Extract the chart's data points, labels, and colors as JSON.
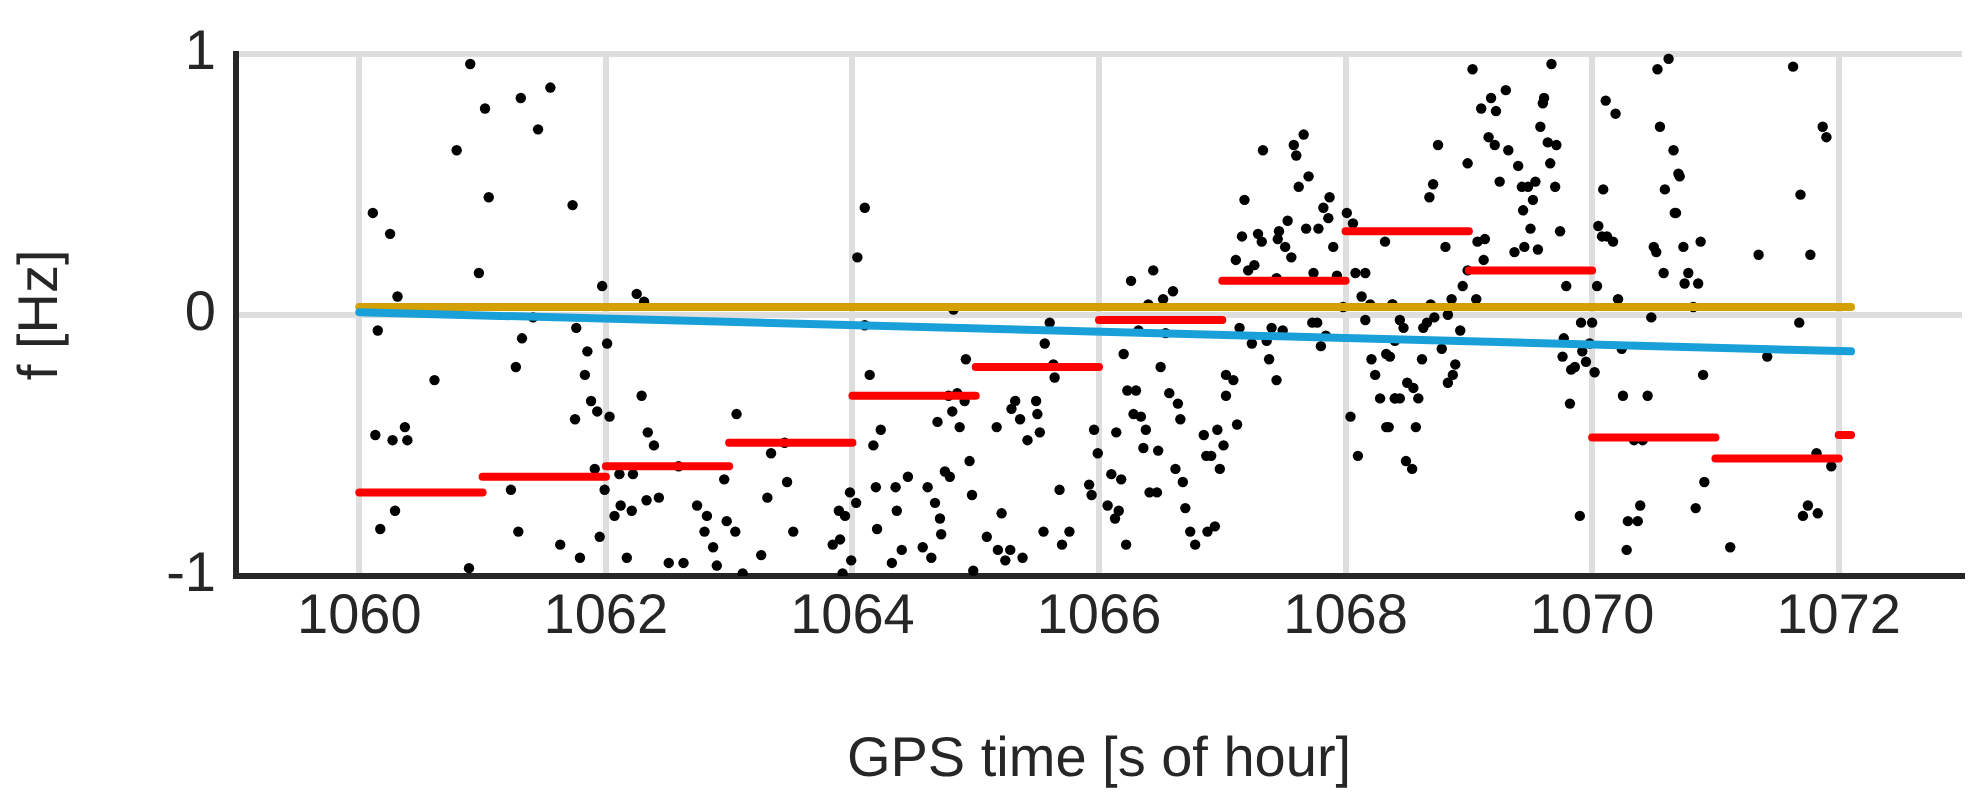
{
  "chart_data": {
    "type": "scatter",
    "xlabel": "GPS time [s of hour]",
    "ylabel": "f [Hz]",
    "xlim": [
      1059,
      1073
    ],
    "xticks": [
      1060,
      1062,
      1064,
      1066,
      1068,
      1070,
      1072
    ],
    "ylim": [
      -1,
      1
    ],
    "yticks": [
      -1,
      0,
      1
    ],
    "grid": true,
    "legend": false,
    "series": [
      {
        "marker": "circle",
        "color": "#000000",
        "x": [
          1060.9,
          1061.02,
          1061.31,
          1060.79,
          1061.05,
          1060.11,
          1060.25,
          1060.97,
          1060.31,
          1060.15,
          1061.32,
          1061.27,
          1060.61,
          1060.13,
          1060.27,
          1060.37,
          1060.39,
          1061.23,
          1060.29,
          1060.17,
          1061.29,
          1060.89,
          1061.55,
          1061.45,
          1061.73,
          1061.97,
          1062.25,
          1062.31,
          1061.41,
          1061.76,
          1062.01,
          1061.85,
          1061.83,
          1062.29,
          1061.88,
          1061.75,
          1061.93,
          1062.03,
          1062.34,
          1063.06,
          1062.39,
          1063.34,
          1063.45,
          1061.91,
          1062.11,
          1062.22,
          1062.59,
          1062.96,
          1061.99,
          1062.12,
          1062.33,
          1062.43,
          1062.21,
          1062.07,
          1062.74,
          1062.82,
          1063.31,
          1063.47,
          1062.98,
          1062.8,
          1063.05,
          1063.52,
          1061.95,
          1061.63,
          1061.79,
          1062.17,
          1062.51,
          1062.63,
          1062.87,
          1062.9,
          1063.26,
          1063.11,
          1064.1,
          1064.04,
          1064.1,
          1064.82,
          1064.14,
          1065.6,
          1065.56,
          1065.63,
          1065.64,
          1064.92,
          1064.78,
          1064.85,
          1064.91,
          1064.81,
          1064.69,
          1064.87,
          1065.32,
          1065.29,
          1065.49,
          1065.36,
          1065.5,
          1065.52,
          1065.17,
          1065.42,
          1064.23,
          1064.17,
          1065.96,
          1065.99,
          1064.95,
          1064.19,
          1064.35,
          1064.45,
          1064.61,
          1064.75,
          1064.79,
          1064.97,
          1063.98,
          1064.03,
          1063.89,
          1063.94,
          1064.36,
          1064.67,
          1064.71,
          1064.2,
          1064.72,
          1063.9,
          1063.84,
          1065.68,
          1065.92,
          1065.94,
          1065.21,
          1065.55,
          1065.76,
          1065.09,
          1065.7,
          1064.4,
          1064.57,
          1064.64,
          1065.18,
          1065.28,
          1065.24,
          1065.38,
          1064.32,
          1063.99,
          1064.98,
          1063.92,
          1066.26,
          1066.44,
          1066.6,
          1066.52,
          1066.4,
          1066.32,
          1066.54,
          1066.2,
          1066.5,
          1066.23,
          1066.3,
          1066.57,
          1066.64,
          1067.03,
          1067.09,
          1067.03,
          1066.28,
          1066.34,
          1066.14,
          1066.38,
          1066.66,
          1066.85,
          1066.96,
          1067.12,
          1066.36,
          1066.48,
          1066.87,
          1066.91,
          1067.01,
          1066.98,
          1066.62,
          1066.1,
          1066.18,
          1066.68,
          1066.41,
          1066.47,
          1066.07,
          1066.16,
          1066.13,
          1066.7,
          1066.74,
          1066.88,
          1066.94,
          1066.22,
          1066.78,
          1067.33,
          1067.58,
          1067.66,
          1067.6,
          1067.7,
          1067.62,
          1067.18,
          1067.87,
          1067.82,
          1067.86,
          1067.53,
          1067.46,
          1067.29,
          1067.32,
          1067.16,
          1067.45,
          1067.68,
          1067.78,
          1067.51,
          1067.56,
          1067.9,
          1067.11,
          1067.26,
          1067.21,
          1067.74,
          1067.93,
          1067.44,
          1067.14,
          1067.4,
          1067.49,
          1067.73,
          1067.77,
          1067.84,
          1067.24,
          1067.36,
          1067.8,
          1067.38,
          1067.44,
          1068.01,
          1068.06,
          1068.08,
          1068.16,
          1068.32,
          1067.98,
          1068.13,
          1068.2,
          1068.38,
          1068.16,
          1068.21,
          1068.24,
          1068.33,
          1068.28,
          1068.4,
          1068.04,
          1068.33,
          1068.1,
          1069.03,
          1069.67,
          1069.1,
          1069.18,
          1069.22,
          1069.3,
          1069.6,
          1069.61,
          1069.16,
          1069.21,
          1069.32,
          1069.58,
          1069.64,
          1069.71,
          1068.75,
          1068.99,
          1069.4,
          1069.66,
          1068.71,
          1068.68,
          1069.25,
          1069.43,
          1069.48,
          1069.54,
          1069.7,
          1069.52,
          1069.44,
          1069.5,
          1069.74,
          1069.07,
          1069.13,
          1069.37,
          1069.45,
          1069.56,
          1068.81,
          1069.12,
          1068.99,
          1068.95,
          1069.06,
          1068.86,
          1069.79,
          1068.38,
          1068.69,
          1068.44,
          1068.47,
          1068.63,
          1068.66,
          1068.72,
          1068.83,
          1068.93,
          1068.4,
          1068.78,
          1068.36,
          1068.62,
          1068.89,
          1068.83,
          1068.87,
          1068.5,
          1068.55,
          1068.4,
          1068.44,
          1068.59,
          1068.57,
          1068.35,
          1068.49,
          1068.54,
          1069.91,
          1070.0,
          1069.77,
          1069.98,
          1069.92,
          1069.76,
          1069.86,
          1069.83,
          1069.95,
          1070.02,
          1069.82,
          1069.9,
          1070.04,
          1070.05,
          1070.08,
          1070.12,
          1070.17,
          1070.11,
          1070.19,
          1070.09,
          1070.21,
          1070.24,
          1070.25,
          1070.45,
          1070.34,
          1070.41,
          1070.39,
          1070.29,
          1070.37,
          1070.28,
          1070.53,
          1070.62,
          1070.55,
          1070.66,
          1070.59,
          1070.7,
          1070.67,
          1070.5,
          1070.52,
          1070.74,
          1070.58,
          1070.48,
          1071.63,
          1071.87,
          1071.9,
          1071.69,
          1070.71,
          1070.68,
          1070.88,
          1071.35,
          1071.77,
          1070.78,
          1070.75,
          1070.86,
          1070.82,
          1071.68,
          1071.42,
          1070.9,
          1071.82,
          1071.94,
          1070.91,
          1070.84,
          1071.75,
          1071.71,
          1071.83,
          1071.12
        ],
        "values": [
          0.96,
          0.79,
          0.83,
          0.63,
          0.45,
          0.39,
          0.31,
          0.16,
          0.07,
          -0.06,
          -0.09,
          -0.2,
          -0.25,
          -0.46,
          -0.48,
          -0.43,
          -0.48,
          -0.67,
          -0.75,
          -0.82,
          -0.83,
          -0.97,
          0.87,
          0.71,
          0.42,
          0.11,
          0.08,
          0.05,
          -0.01,
          -0.05,
          -0.11,
          -0.14,
          -0.23,
          -0.31,
          -0.33,
          -0.4,
          -0.37,
          -0.39,
          -0.45,
          -0.38,
          -0.5,
          -0.53,
          -0.49,
          -0.59,
          -0.61,
          -0.61,
          -0.58,
          -0.63,
          -0.67,
          -0.73,
          -0.71,
          -0.7,
          -0.75,
          -0.77,
          -0.73,
          -0.77,
          -0.7,
          -0.64,
          -0.79,
          -0.83,
          -0.83,
          -0.83,
          -0.85,
          -0.88,
          -0.93,
          -0.93,
          -0.95,
          -0.95,
          -0.89,
          -0.96,
          -0.92,
          -0.99,
          0.41,
          0.22,
          -0.04,
          0.02,
          -0.23,
          -0.03,
          -0.11,
          -0.19,
          -0.24,
          -0.17,
          -0.31,
          -0.3,
          -0.33,
          -0.37,
          -0.41,
          -0.43,
          -0.33,
          -0.36,
          -0.33,
          -0.4,
          -0.38,
          -0.45,
          -0.43,
          -0.48,
          -0.44,
          -0.5,
          -0.44,
          -0.53,
          -0.56,
          -0.66,
          -0.66,
          -0.62,
          -0.66,
          -0.6,
          -0.62,
          -0.69,
          -0.68,
          -0.72,
          -0.75,
          -0.77,
          -0.75,
          -0.72,
          -0.78,
          -0.82,
          -0.84,
          -0.86,
          -0.88,
          -0.67,
          -0.65,
          -0.69,
          -0.76,
          -0.83,
          -0.83,
          -0.85,
          -0.88,
          -0.9,
          -0.89,
          -0.93,
          -0.9,
          -0.9,
          -0.94,
          -0.93,
          -0.95,
          -0.94,
          -0.98,
          -0.99,
          0.13,
          0.17,
          0.09,
          0.06,
          0.04,
          -0.06,
          -0.07,
          -0.15,
          -0.2,
          -0.29,
          -0.29,
          -0.3,
          -0.34,
          -0.23,
          -0.25,
          -0.31,
          -0.38,
          -0.39,
          -0.45,
          -0.44,
          -0.4,
          -0.46,
          -0.44,
          -0.42,
          -0.51,
          -0.52,
          -0.54,
          -0.54,
          -0.5,
          -0.59,
          -0.59,
          -0.61,
          -0.63,
          -0.64,
          -0.68,
          -0.68,
          -0.73,
          -0.75,
          -0.78,
          -0.74,
          -0.83,
          -0.83,
          -0.81,
          -0.88,
          -0.88,
          0.63,
          0.65,
          0.69,
          0.61,
          0.53,
          0.49,
          0.44,
          0.45,
          0.41,
          0.37,
          0.36,
          0.32,
          0.31,
          0.28,
          0.3,
          0.29,
          0.33,
          0.33,
          0.26,
          0.22,
          0.26,
          0.21,
          0.19,
          0.17,
          0.16,
          0.15,
          0.14,
          -0.05,
          -0.05,
          -0.06,
          -0.03,
          -0.03,
          -0.08,
          -0.11,
          -0.1,
          -0.12,
          -0.17,
          -0.25,
          0.39,
          0.35,
          0.16,
          0.16,
          0.28,
          0.03,
          0.07,
          0.04,
          0.04,
          -0.02,
          -0.17,
          -0.23,
          -0.15,
          -0.32,
          -0.32,
          -0.39,
          -0.43,
          -0.54,
          0.94,
          0.96,
          0.79,
          0.83,
          0.78,
          0.86,
          0.81,
          0.83,
          0.68,
          0.65,
          0.63,
          0.72,
          0.66,
          0.65,
          0.65,
          0.58,
          0.57,
          0.58,
          0.5,
          0.45,
          0.51,
          0.49,
          0.49,
          0.51,
          0.49,
          0.44,
          0.4,
          0.33,
          0.32,
          0.28,
          0.29,
          0.24,
          0.26,
          0.25,
          0.26,
          0.21,
          0.17,
          0.11,
          0.06,
          0.06,
          0.11,
          0.04,
          0.04,
          -0.02,
          -0.05,
          -0.05,
          -0.03,
          -0.01,
          0.0,
          -0.06,
          -0.1,
          -0.13,
          -0.16,
          -0.17,
          -0.19,
          -0.26,
          -0.23,
          -0.26,
          -0.28,
          -0.32,
          -0.32,
          -0.32,
          -0.43,
          -0.43,
          -0.56,
          -0.59,
          -0.03,
          -0.03,
          -0.09,
          -0.11,
          -0.14,
          -0.16,
          -0.2,
          -0.21,
          -0.18,
          -0.22,
          -0.34,
          -0.77,
          0.11,
          0.34,
          0.3,
          0.3,
          0.28,
          0.82,
          0.77,
          0.48,
          0.06,
          -0.13,
          -0.31,
          -0.31,
          -0.48,
          -0.48,
          -0.73,
          -0.79,
          -0.79,
          -0.9,
          0.94,
          0.98,
          0.72,
          0.63,
          0.48,
          0.54,
          0.39,
          0.26,
          0.24,
          0.26,
          0.16,
          -0.01,
          0.95,
          0.72,
          0.68,
          0.46,
          0.53,
          0.39,
          0.28,
          0.23,
          0.23,
          0.16,
          0.12,
          0.12,
          0.03,
          -0.03,
          -0.16,
          -0.23,
          -0.53,
          -0.58,
          -0.64,
          -0.74,
          -0.73,
          -0.77,
          -0.76,
          -0.89
        ]
      },
      {
        "type": "line",
        "marker": "none",
        "color": "#d4a000",
        "x": [
          1060,
          1072.1
        ],
        "values": [
          0.03,
          0.03
        ]
      },
      {
        "type": "line",
        "marker": "none",
        "color": "#1aa0d8",
        "x": [
          1060,
          1072.1
        ],
        "values": [
          0.01,
          -0.14
        ]
      },
      {
        "type": "line",
        "marker": "none",
        "color": "#ff0000",
        "x": [
          1060,
          1061
        ],
        "values": [
          -0.68,
          -0.68
        ]
      },
      {
        "type": "line",
        "marker": "none",
        "color": "#ff0000",
        "x": [
          1061,
          1062
        ],
        "values": [
          -0.62,
          -0.62
        ]
      },
      {
        "type": "line",
        "marker": "none",
        "color": "#ff0000",
        "x": [
          1062,
          1063
        ],
        "values": [
          -0.58,
          -0.58
        ]
      },
      {
        "type": "line",
        "marker": "none",
        "color": "#ff0000",
        "x": [
          1063,
          1064
        ],
        "values": [
          -0.49,
          -0.49
        ]
      },
      {
        "type": "line",
        "marker": "none",
        "color": "#ff0000",
        "x": [
          1064,
          1065
        ],
        "values": [
          -0.31,
          -0.31
        ]
      },
      {
        "type": "line",
        "marker": "none",
        "color": "#ff0000",
        "x": [
          1065,
          1066
        ],
        "values": [
          -0.2,
          -0.2
        ]
      },
      {
        "type": "line",
        "marker": "none",
        "color": "#ff0000",
        "x": [
          1066,
          1067
        ],
        "values": [
          -0.02,
          -0.02
        ]
      },
      {
        "type": "line",
        "marker": "none",
        "color": "#ff0000",
        "x": [
          1067,
          1068
        ],
        "values": [
          0.13,
          0.13
        ]
      },
      {
        "type": "line",
        "marker": "none",
        "color": "#ff0000",
        "x": [
          1068,
          1069
        ],
        "values": [
          0.32,
          0.32
        ]
      },
      {
        "type": "line",
        "marker": "none",
        "color": "#ff0000",
        "x": [
          1069,
          1070
        ],
        "values": [
          0.17,
          0.17
        ]
      },
      {
        "type": "line",
        "marker": "none",
        "color": "#ff0000",
        "x": [
          1070,
          1071
        ],
        "values": [
          -0.47,
          -0.47
        ]
      },
      {
        "type": "line",
        "marker": "none",
        "color": "#ff0000",
        "x": [
          1071,
          1072
        ],
        "values": [
          -0.55,
          -0.55
        ]
      },
      {
        "type": "line",
        "marker": "none",
        "color": "#ff0000",
        "x": [
          1072,
          1072.1
        ],
        "values": [
          -0.46,
          -0.46
        ]
      }
    ]
  }
}
